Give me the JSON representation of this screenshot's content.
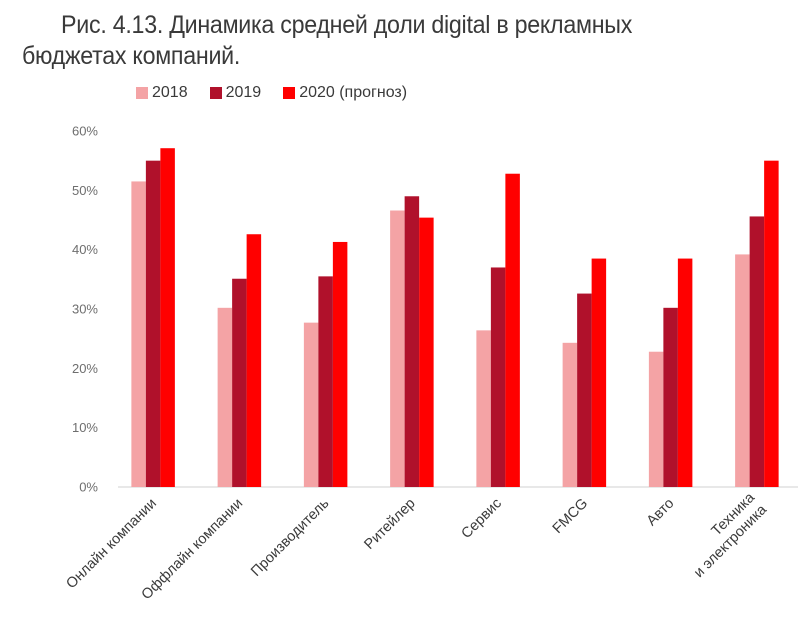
{
  "title": "Рис. 4.13. Динамика средней доли digital в рекламных бюджетах компаний.",
  "chart_data": {
    "type": "bar",
    "title": "Рис. 4.13. Динамика средней доли digital в рекламных бюджетах компаний.",
    "categories": [
      "Онлайн компании",
      "Оффлайн компании",
      "Производитель",
      "Ритейлер",
      "Сервис",
      "FMCG",
      "Авто",
      "Техника и электроника"
    ],
    "category_lines": [
      [
        "Онлайн компании"
      ],
      [
        "Оффлайн компании"
      ],
      [
        "Производитель"
      ],
      [
        "Ритейлер"
      ],
      [
        "Сервис"
      ],
      [
        "FMCG"
      ],
      [
        "Авто"
      ],
      [
        "Техника",
        "и электроника"
      ]
    ],
    "series": [
      {
        "name": "2018",
        "color": "#f4a3a5",
        "values": [
          51.5,
          30.2,
          27.7,
          46.6,
          26.4,
          24.3,
          22.8,
          39.2
        ]
      },
      {
        "name": "2019",
        "color": "#b0112b",
        "values": [
          55.0,
          35.1,
          35.5,
          49.0,
          37.0,
          32.6,
          30.2,
          45.6
        ]
      },
      {
        "name": "2020 (прогноз)",
        "color": "#ff0000",
        "values": [
          57.1,
          42.6,
          41.3,
          45.4,
          52.8,
          38.5,
          38.5,
          55.0
        ]
      }
    ],
    "ylim": [
      0,
      60
    ],
    "yticks": [
      "0%",
      "10%",
      "20%",
      "30%",
      "40%",
      "50%",
      "60%"
    ],
    "ytick_values": [
      0,
      10,
      20,
      30,
      40,
      50,
      60
    ],
    "legend_position": "top-left",
    "grid": false
  }
}
